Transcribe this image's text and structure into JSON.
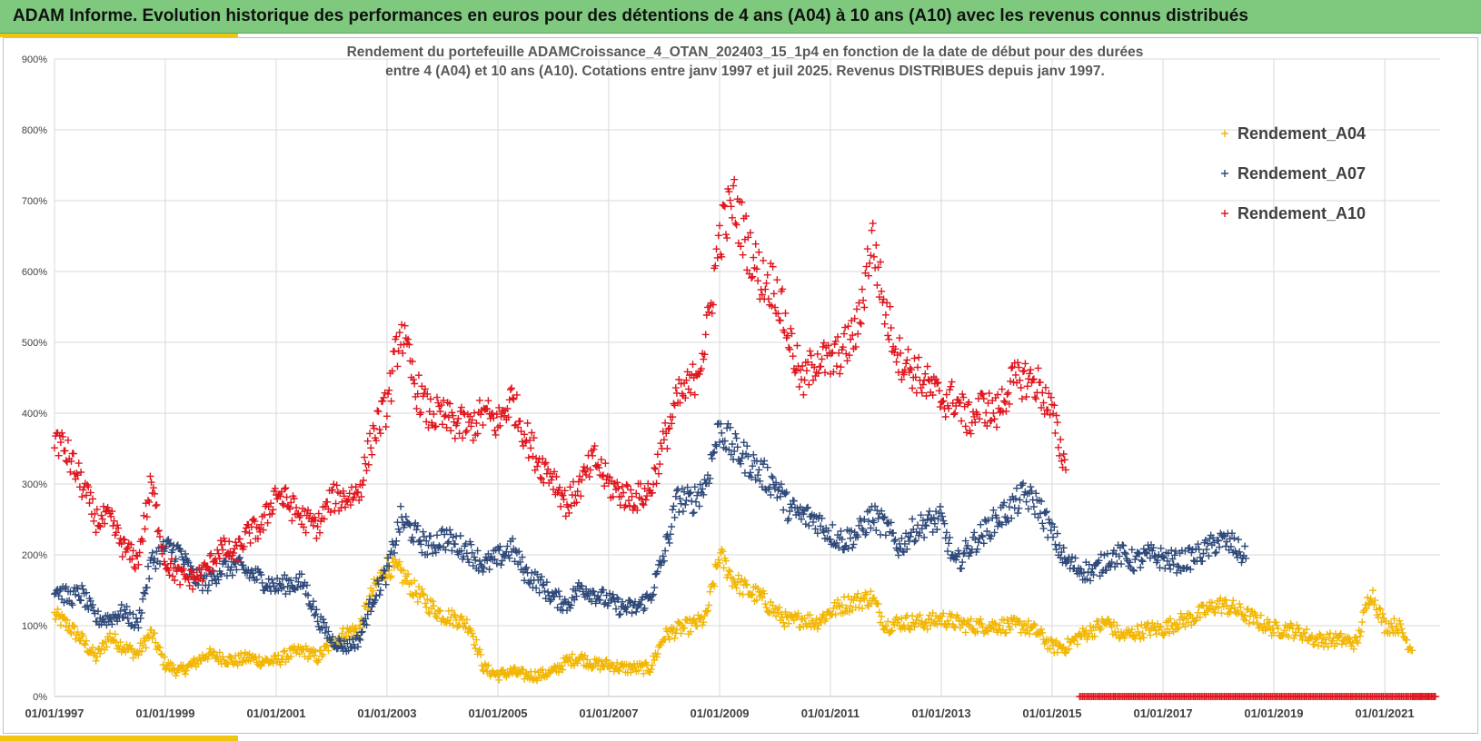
{
  "banner": {
    "title": "ADAM Informe. Evolution historique des performances en euros pour des détentions de 4 ans (A04) à 10 ans (A10) avec les revenus connus distribués"
  },
  "colors": {
    "banner_bg": "#7fc97f",
    "accent": "#f1c40f",
    "a04": "#f2b705",
    "a07": "#2f4a7a",
    "a10": "#e0161e"
  },
  "chart_data": {
    "type": "scatter",
    "title_lines": [
      "Rendement du portefeuille ADAMCroissance_4_OTAN_202403_15_1p4  en fonction de la date de début pour des durées",
      "entre 4 (A04) et 10 ans (A10). Cotations  entre janv 1997 et juil 2025. Revenus DISTRIBUES depuis janv 1997."
    ],
    "x_axis": {
      "type": "date",
      "range": [
        "1997-01-01",
        "2021-12-31"
      ],
      "ticks": [
        "01/01/1997",
        "01/01/1999",
        "01/01/2001",
        "01/01/2003",
        "01/01/2005",
        "01/01/2007",
        "01/01/2009",
        "01/01/2011",
        "01/01/2013",
        "01/01/2015",
        "01/01/2017",
        "01/01/2019",
        "01/01/2021"
      ]
    },
    "y_axis": {
      "unit": "%",
      "range": [
        0,
        900
      ],
      "ticks": [
        "0%",
        "100%",
        "200%",
        "300%",
        "400%",
        "500%",
        "600%",
        "700%",
        "800%",
        "900%"
      ]
    },
    "grid": "on",
    "legend_position": "top-right",
    "series": [
      {
        "name": "Rendement_A04",
        "color": "#f2b705",
        "x": [
          "1997-01",
          "1997-04",
          "1997-07",
          "1997-10",
          "1998-01",
          "1998-04",
          "1998-07",
          "1998-10",
          "1999-01",
          "1999-04",
          "1999-07",
          "1999-10",
          "2000-01",
          "2000-04",
          "2000-07",
          "2000-10",
          "2001-01",
          "2001-04",
          "2001-07",
          "2001-10",
          "2002-01",
          "2002-04",
          "2002-07",
          "2002-10",
          "2003-01",
          "2003-04",
          "2003-07",
          "2003-10",
          "2004-01",
          "2004-04",
          "2004-07",
          "2004-10",
          "2005-01",
          "2005-04",
          "2005-07",
          "2005-10",
          "2006-01",
          "2006-04",
          "2006-07",
          "2006-10",
          "2007-01",
          "2007-04",
          "2007-07",
          "2007-10",
          "2008-01",
          "2008-04",
          "2008-07",
          "2008-10",
          "2009-01",
          "2009-04",
          "2009-07",
          "2009-10",
          "2010-01",
          "2010-04",
          "2010-07",
          "2010-10",
          "2011-01",
          "2011-04",
          "2011-07",
          "2011-10",
          "2012-01",
          "2012-04",
          "2012-07",
          "2012-10",
          "2013-01",
          "2013-04",
          "2013-07",
          "2013-10",
          "2014-01",
          "2014-04",
          "2014-07",
          "2014-10",
          "2015-01",
          "2015-04",
          "2015-07",
          "2015-10",
          "2016-01",
          "2016-04",
          "2016-07",
          "2016-10",
          "2017-01",
          "2017-04",
          "2017-07",
          "2017-10",
          "2018-01",
          "2018-04",
          "2018-07",
          "2018-10",
          "2019-01",
          "2019-04",
          "2019-07",
          "2019-10",
          "2020-01",
          "2020-04",
          "2020-07",
          "2020-10",
          "2021-01",
          "2021-04",
          "2021-07"
        ],
        "y": [
          115,
          100,
          80,
          55,
          85,
          70,
          60,
          90,
          45,
          35,
          45,
          60,
          55,
          50,
          55,
          50,
          50,
          60,
          65,
          55,
          75,
          90,
          95,
          150,
          185,
          175,
          150,
          130,
          115,
          110,
          100,
          40,
          30,
          35,
          30,
          30,
          35,
          50,
          55,
          45,
          45,
          40,
          40,
          40,
          85,
          95,
          100,
          110,
          200,
          165,
          150,
          140,
          120,
          105,
          110,
          105,
          120,
          130,
          135,
          140,
          100,
          105,
          105,
          105,
          110,
          105,
          100,
          100,
          100,
          100,
          100,
          90,
          70,
          70,
          85,
          95,
          105,
          85,
          90,
          95,
          95,
          105,
          110,
          120,
          130,
          125,
          115,
          105,
          95,
          95,
          90,
          80,
          80,
          80,
          75,
          150,
          100,
          100,
          65
        ]
      },
      {
        "name": "Rendement_A07",
        "color": "#2f4a7a",
        "x": [
          "1997-01",
          "1997-04",
          "1997-07",
          "1997-10",
          "1998-01",
          "1998-04",
          "1998-07",
          "1998-10",
          "1999-01",
          "1999-04",
          "1999-07",
          "1999-10",
          "2000-01",
          "2000-04",
          "2000-07",
          "2000-10",
          "2001-01",
          "2001-04",
          "2001-07",
          "2001-10",
          "2002-01",
          "2002-04",
          "2002-07",
          "2002-10",
          "2003-01",
          "2003-04",
          "2003-07",
          "2003-10",
          "2004-01",
          "2004-04",
          "2004-07",
          "2004-10",
          "2005-01",
          "2005-04",
          "2005-07",
          "2005-10",
          "2006-01",
          "2006-04",
          "2006-07",
          "2006-10",
          "2007-01",
          "2007-04",
          "2007-07",
          "2007-10",
          "2008-01",
          "2008-04",
          "2008-07",
          "2008-10",
          "2009-01",
          "2009-04",
          "2009-07",
          "2009-10",
          "2010-01",
          "2010-04",
          "2010-07",
          "2010-10",
          "2011-01",
          "2011-04",
          "2011-07",
          "2011-10",
          "2012-01",
          "2012-04",
          "2012-07",
          "2012-10",
          "2013-01",
          "2013-04",
          "2013-07",
          "2013-10",
          "2014-01",
          "2014-04",
          "2014-07",
          "2014-10",
          "2015-01",
          "2015-04",
          "2015-07",
          "2015-10",
          "2016-01",
          "2016-04",
          "2016-07",
          "2016-10",
          "2017-01",
          "2017-04",
          "2017-07",
          "2017-10",
          "2018-01",
          "2018-04",
          "2018-07"
        ],
        "y": [
          155,
          140,
          145,
          110,
          110,
          120,
          100,
          190,
          210,
          205,
          170,
          160,
          180,
          185,
          175,
          165,
          155,
          160,
          160,
          110,
          80,
          70,
          80,
          140,
          175,
          250,
          230,
          210,
          225,
          215,
          205,
          185,
          195,
          210,
          175,
          160,
          140,
          130,
          155,
          145,
          135,
          125,
          125,
          140,
          200,
          280,
          275,
          300,
          380,
          350,
          335,
          315,
          300,
          265,
          255,
          250,
          230,
          220,
          230,
          255,
          240,
          210,
          235,
          245,
          250,
          185,
          210,
          230,
          250,
          265,
          285,
          270,
          230,
          190,
          180,
          175,
          195,
          200,
          190,
          200,
          195,
          190,
          195,
          205,
          220,
          215,
          195
        ]
      },
      {
        "name": "Rendement_A10",
        "color": "#e0161e",
        "x": [
          "1997-01",
          "1997-04",
          "1997-07",
          "1997-10",
          "1998-01",
          "1998-04",
          "1998-07",
          "1998-10",
          "1999-01",
          "1999-04",
          "1999-07",
          "1999-10",
          "2000-01",
          "2000-04",
          "2000-07",
          "2000-10",
          "2001-01",
          "2001-04",
          "2001-07",
          "2001-10",
          "2002-01",
          "2002-04",
          "2002-07",
          "2002-10",
          "2003-01",
          "2003-04",
          "2003-07",
          "2003-10",
          "2004-01",
          "2004-04",
          "2004-07",
          "2004-10",
          "2005-01",
          "2005-04",
          "2005-07",
          "2005-10",
          "2006-01",
          "2006-04",
          "2006-07",
          "2006-10",
          "2007-01",
          "2007-04",
          "2007-07",
          "2007-10",
          "2008-01",
          "2008-04",
          "2008-07",
          "2008-10",
          "2009-01",
          "2009-04",
          "2009-07",
          "2009-10",
          "2010-01",
          "2010-04",
          "2010-07",
          "2010-10",
          "2011-01",
          "2011-04",
          "2011-07",
          "2011-10",
          "2012-01",
          "2012-04",
          "2012-07",
          "2012-10",
          "2013-01",
          "2013-04",
          "2013-07",
          "2013-10",
          "2014-01",
          "2014-04",
          "2014-07",
          "2014-10",
          "2015-01",
          "2015-04"
        ],
        "y": [
          370,
          340,
          300,
          250,
          250,
          210,
          190,
          300,
          190,
          170,
          165,
          180,
          210,
          200,
          230,
          240,
          290,
          270,
          250,
          240,
          280,
          280,
          290,
          370,
          410,
          520,
          440,
          400,
          395,
          385,
          380,
          400,
          385,
          420,
          370,
          330,
          310,
          270,
          300,
          335,
          300,
          285,
          280,
          290,
          360,
          420,
          440,
          500,
          650,
          700,
          640,
          590,
          580,
          510,
          440,
          480,
          470,
          490,
          520,
          650,
          540,
          480,
          460,
          440,
          420,
          420,
          390,
          410,
          400,
          440,
          450,
          440,
          400,
          320
        ]
      },
      {
        "name": "",
        "color": "#e0161e",
        "note_visible": "A10 values at 0% from 2015 onwards",
        "x": [
          "2015-07",
          "2016-01",
          "2016-07",
          "2017-01",
          "2017-07",
          "2018-01",
          "2018-07",
          "2019-01",
          "2019-07",
          "2020-01",
          "2020-07",
          "2021-01",
          "2021-07",
          "2021-12"
        ],
        "y": [
          0,
          0,
          0,
          0,
          0,
          0,
          0,
          0,
          0,
          0,
          0,
          0,
          0,
          0
        ]
      }
    ],
    "legend": [
      "Rendement_A04",
      "Rendement_A07",
      "Rendement_A10"
    ]
  }
}
